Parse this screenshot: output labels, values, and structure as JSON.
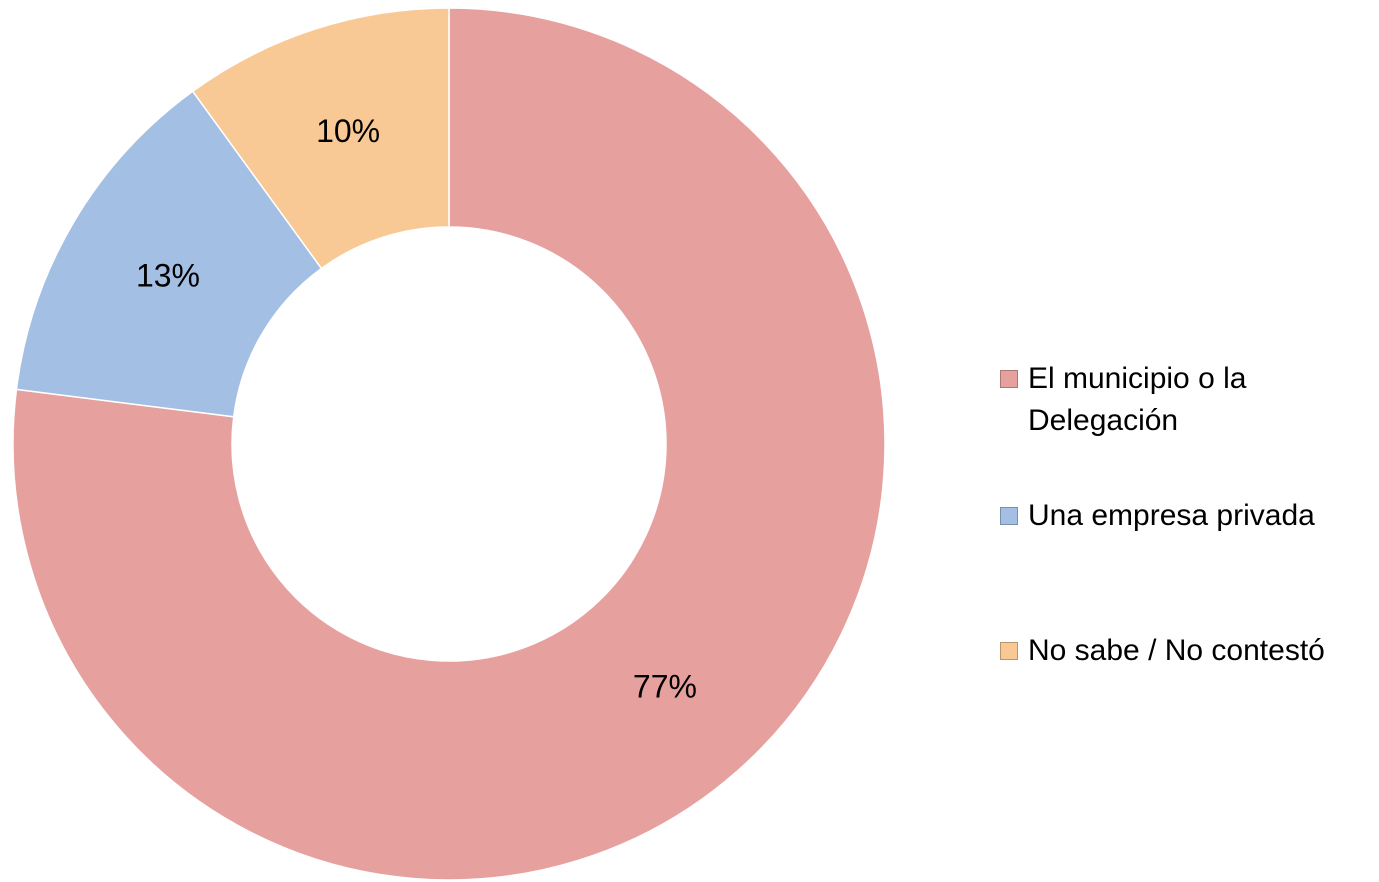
{
  "chart_data": {
    "type": "donut",
    "categories": [
      "El municipio o la Delegación",
      "Una empresa privada",
      "No sabe / No contestó"
    ],
    "values": [
      77,
      13,
      10
    ],
    "value_labels": [
      "77%",
      "13%",
      "10%"
    ],
    "colors": [
      "#e6a09e",
      "#a3bfe3",
      "#f9c995"
    ],
    "legend": "right"
  }
}
